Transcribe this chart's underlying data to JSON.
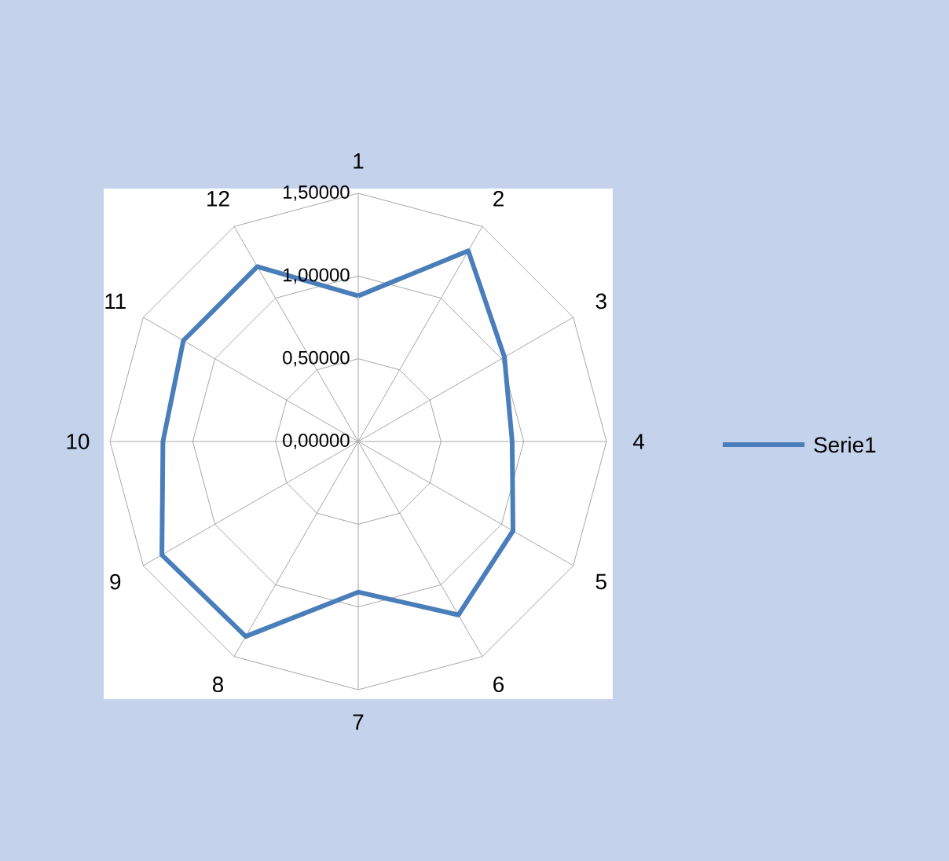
{
  "chart_data": {
    "type": "radar",
    "categories": [
      "1",
      "2",
      "3",
      "4",
      "5",
      "6",
      "7",
      "8",
      "9",
      "10",
      "11",
      "12"
    ],
    "series": [
      {
        "name": "Serie1",
        "color": "#4a7ebb",
        "values": [
          0.88,
          1.33,
          1.02,
          0.93,
          1.08,
          1.21,
          0.91,
          1.36,
          1.37,
          1.18,
          1.22,
          1.22
        ]
      }
    ],
    "ylim": [
      0,
      1.5
    ],
    "yticks": [
      {
        "value": 0,
        "label": "0,00000"
      },
      {
        "value": 0.5,
        "label": "0,50000"
      },
      {
        "value": 1,
        "label": "1,00000"
      },
      {
        "value": 1.5,
        "label": "1,50000"
      }
    ],
    "grid": true,
    "legend": "right",
    "marker": "none",
    "line_style": "solid"
  }
}
